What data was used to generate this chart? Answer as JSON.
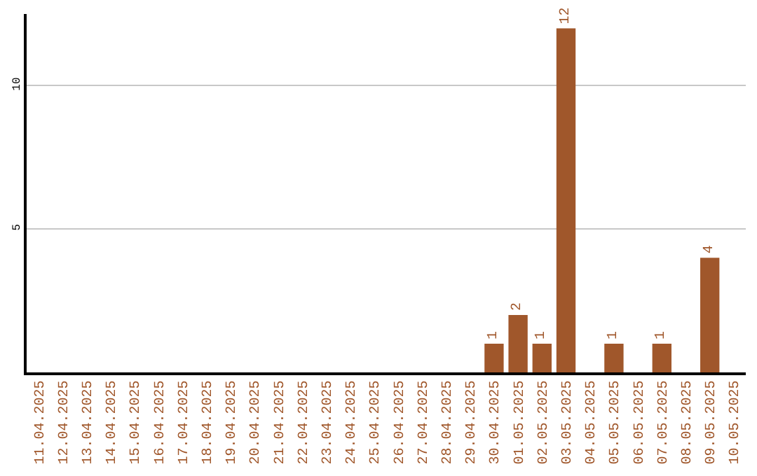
{
  "chart_data": {
    "type": "bar",
    "categories": [
      "11.04.2025",
      "12.04.2025",
      "13.04.2025",
      "14.04.2025",
      "15.04.2025",
      "16.04.2025",
      "17.04.2025",
      "18.04.2025",
      "19.04.2025",
      "20.04.2025",
      "21.04.2025",
      "22.04.2025",
      "23.04.2025",
      "24.04.2025",
      "25.04.2025",
      "26.04.2025",
      "27.04.2025",
      "28.04.2025",
      "29.04.2025",
      "30.04.2025",
      "01.05.2025",
      "02.05.2025",
      "03.05.2025",
      "04.05.2025",
      "05.05.2025",
      "06.05.2025",
      "07.05.2025",
      "08.05.2025",
      "09.05.2025",
      "10.05.2025"
    ],
    "values": [
      0,
      0,
      0,
      0,
      0,
      0,
      0,
      0,
      0,
      0,
      0,
      0,
      0,
      0,
      0,
      0,
      0,
      0,
      0,
      1,
      2,
      1,
      12,
      0,
      1,
      0,
      1,
      0,
      4,
      0
    ],
    "value_labels": [
      null,
      null,
      null,
      null,
      null,
      null,
      null,
      null,
      null,
      null,
      null,
      null,
      null,
      null,
      null,
      null,
      null,
      null,
      null,
      "1",
      "2",
      "1",
      "12",
      null,
      "1",
      null,
      "1",
      null,
      "4",
      null
    ],
    "color": "#a0572b",
    "ylim": [
      0,
      12.5
    ],
    "yticks": [
      5,
      10
    ],
    "grid": "y",
    "legend": false
  }
}
